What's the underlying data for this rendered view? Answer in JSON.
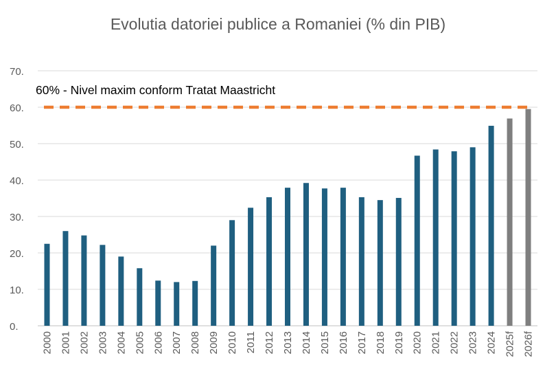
{
  "chart_data": {
    "type": "bar",
    "title": "Evolutia datoriei publice a Romaniei (% din PIB)",
    "xlabel": "",
    "ylabel": "",
    "ylim": [
      0,
      70
    ],
    "yticks": [
      0,
      10,
      20,
      30,
      40,
      50,
      60,
      70
    ],
    "ytick_labels": [
      "0.",
      "10.",
      "20.",
      "30.",
      "40.",
      "50.",
      "60.",
      "70."
    ],
    "grid": true,
    "categories": [
      "2000",
      "2001",
      "2002",
      "2003",
      "2004",
      "2005",
      "2006",
      "2007",
      "2008",
      "2009",
      "2010",
      "2011",
      "2012",
      "2013",
      "2014",
      "2015",
      "2016",
      "2017",
      "2018",
      "2019",
      "2020",
      "2021",
      "2022",
      "2023",
      "2024",
      "2025f",
      "2026f"
    ],
    "values": [
      22.5,
      26.0,
      24.8,
      22.2,
      19.0,
      15.8,
      12.4,
      12.0,
      12.3,
      22.0,
      29.0,
      32.4,
      35.3,
      37.9,
      39.2,
      37.7,
      37.9,
      35.3,
      34.5,
      35.1,
      46.7,
      48.4,
      47.9,
      49.0,
      54.9,
      56.9,
      59.5
    ],
    "forecast": [
      false,
      false,
      false,
      false,
      false,
      false,
      false,
      false,
      false,
      false,
      false,
      false,
      false,
      false,
      false,
      false,
      false,
      false,
      false,
      false,
      false,
      false,
      false,
      false,
      false,
      true,
      true
    ],
    "reference_line": {
      "value": 60,
      "label": "60% - Nivel maxim conform Tratat Maastricht"
    },
    "colors": {
      "actual": "#1f5f80",
      "forecast": "#7f7f7f",
      "reference": "#ed7d31",
      "grid": "#d9d9d9",
      "axis": "#bfbfbf",
      "text": "#595959",
      "title": "#595959"
    }
  }
}
